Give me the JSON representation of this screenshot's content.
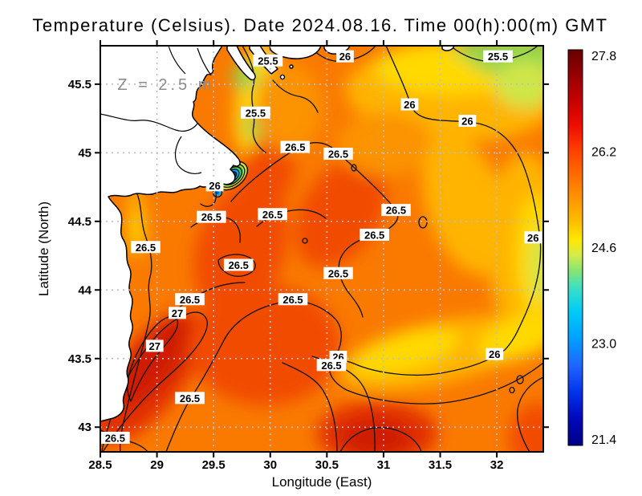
{
  "figure": {
    "title": "Temperature (Celsius). Date 2024.08.16. Time 00(h):00(m) GMT"
  },
  "chart_data": {
    "type": "heatmap",
    "subtype": "filled-contour-map",
    "title": "Temperature (Celsius). Date 2024.08.16. Time 00(h):00(m) GMT",
    "xlabel": "Longitude (East)",
    "ylabel": "Latitude (North)",
    "xlim": [
      28.5,
      32.41
    ],
    "ylim": [
      42.82,
      45.78
    ],
    "x_ticks": [
      28.5,
      29,
      29.5,
      30,
      30.5,
      31,
      31.5,
      32
    ],
    "x_tick_labels": [
      "28.5",
      "29",
      "29.5",
      "30",
      "30.5",
      "31",
      "31.5",
      "32"
    ],
    "y_ticks": [
      45.5,
      45,
      44.5,
      44,
      43.5,
      43
    ],
    "y_tick_labels": [
      "45.5",
      "45",
      "44.5",
      "44",
      "43.5",
      "43"
    ],
    "grid": {
      "show": true,
      "style": "dotted",
      "interval_deg": 0.5
    },
    "annotation": {
      "text": "Z = 2.5 m",
      "lon": 29.08,
      "lat": 45.5
    },
    "contour_levels": [
      25.5,
      26,
      26.5,
      27
    ],
    "contour_labels": [
      {
        "v": "25.5",
        "lon": 29.98,
        "lat": 45.67
      },
      {
        "v": "25.5",
        "lon": 29.87,
        "lat": 45.29
      },
      {
        "v": "25.5",
        "lon": 32.01,
        "lat": 45.7
      },
      {
        "v": "26",
        "lon": 30.66,
        "lat": 45.7
      },
      {
        "v": "26",
        "lon": 31.23,
        "lat": 45.35
      },
      {
        "v": "26",
        "lon": 31.74,
        "lat": 45.23
      },
      {
        "v": "26",
        "lon": 29.51,
        "lat": 44.76
      },
      {
        "v": "26",
        "lon": 32.32,
        "lat": 44.38
      },
      {
        "v": "26",
        "lon": 31.98,
        "lat": 43.53
      },
      {
        "v": "26",
        "lon": 30.6,
        "lat": 43.51
      },
      {
        "v": "26.5",
        "lon": 30.22,
        "lat": 45.04
      },
      {
        "v": "26.5",
        "lon": 30.6,
        "lat": 44.99
      },
      {
        "v": "26.5",
        "lon": 29.48,
        "lat": 44.53
      },
      {
        "v": "26.5",
        "lon": 30.02,
        "lat": 44.55
      },
      {
        "v": "26.5",
        "lon": 28.9,
        "lat": 44.31
      },
      {
        "v": "26.5",
        "lon": 29.72,
        "lat": 44.18
      },
      {
        "v": "26.5",
        "lon": 31.11,
        "lat": 44.58
      },
      {
        "v": "26.5",
        "lon": 30.92,
        "lat": 44.4
      },
      {
        "v": "26.5",
        "lon": 30.6,
        "lat": 44.12
      },
      {
        "v": "26.5",
        "lon": 29.29,
        "lat": 43.93
      },
      {
        "v": "26.5",
        "lon": 30.2,
        "lat": 43.93
      },
      {
        "v": "26.5",
        "lon": 30.54,
        "lat": 43.45
      },
      {
        "v": "26.5",
        "lon": 29.29,
        "lat": 43.21
      },
      {
        "v": "26.5",
        "lon": 28.63,
        "lat": 42.92
      },
      {
        "v": "27",
        "lon": 29.18,
        "lat": 43.83
      },
      {
        "v": "27",
        "lon": 28.98,
        "lat": 43.59
      }
    ],
    "colorbar": {
      "range": [
        21.3,
        27.9
      ],
      "tick_values": [
        27.8,
        26.2,
        24.6,
        23.0,
        21.4
      ],
      "tick_labels": [
        "27.8",
        "26.2",
        "24.6",
        "23.0",
        "21.4"
      ],
      "stops": [
        {
          "offset": 0.0,
          "color": "#670000"
        },
        {
          "offset": 0.05,
          "color": "#8c0000"
        },
        {
          "offset": 0.12,
          "color": "#c00000"
        },
        {
          "offset": 0.19,
          "color": "#ec0c00"
        },
        {
          "offset": 0.25,
          "color": "#ff3c00"
        },
        {
          "offset": 0.31,
          "color": "#ff6800"
        },
        {
          "offset": 0.37,
          "color": "#ff9000"
        },
        {
          "offset": 0.43,
          "color": "#ffba00"
        },
        {
          "offset": 0.48,
          "color": "#ffe800"
        },
        {
          "offset": 0.52,
          "color": "#d2ec4a"
        },
        {
          "offset": 0.56,
          "color": "#84e474"
        },
        {
          "offset": 0.6,
          "color": "#3ee0c2"
        },
        {
          "offset": 0.66,
          "color": "#00ccf6"
        },
        {
          "offset": 0.73,
          "color": "#00a0ff"
        },
        {
          "offset": 0.8,
          "color": "#2064ff"
        },
        {
          "offset": 0.87,
          "color": "#0030e8"
        },
        {
          "offset": 0.93,
          "color": "#0009bc"
        },
        {
          "offset": 1.0,
          "color": "#000084"
        }
      ]
    }
  },
  "palette": {
    "sea_base": "#fa7a00",
    "warm1": "#f14b00",
    "warm2": "#e23100",
    "hot": "#cf1c00",
    "orange_mid": "#fc9300",
    "orange_yellow": "#ffb400",
    "yellow": "#ffd900",
    "yellow_pale": "#ffef55",
    "yellow_green": "#cfe64a",
    "green": "#93d44e",
    "green_deep": "#58c83e",
    "cyan": "#00bde8",
    "blue": "#0051d8",
    "navy": "#001c96",
    "land": "#ffffff",
    "grid": "#bcc0c4",
    "annotation_gray": "#8c8c8c",
    "contour_black": "#141414"
  }
}
